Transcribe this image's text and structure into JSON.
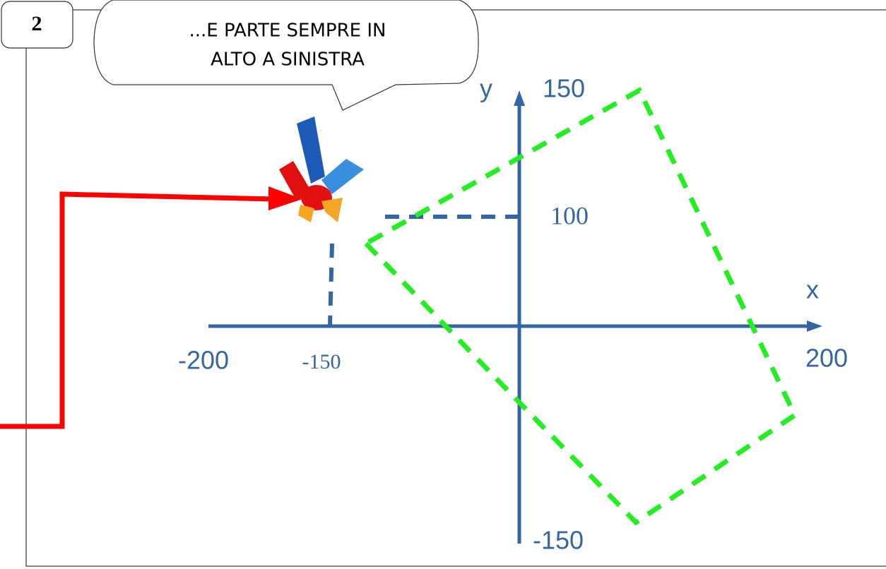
{
  "panel_number": "2",
  "speech_bubble": {
    "lines": [
      "...E PARTE SEMPRE IN",
      "ALTO A SINISTRA"
    ]
  },
  "axes": {
    "y_label": "y",
    "x_label": "x",
    "labels": {
      "y_top": "150",
      "y_point": "100",
      "x_left": "-200",
      "x_point": "-150",
      "x_right": "200",
      "y_bottom": "-150"
    }
  }
}
